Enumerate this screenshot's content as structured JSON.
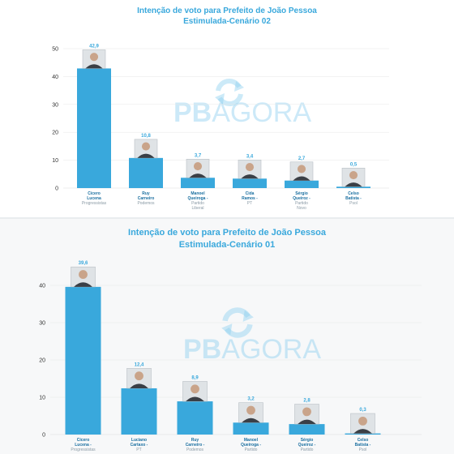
{
  "colors": {
    "bar": "#39a8dc",
    "title": "#39a8dc",
    "value": "#39a8dc",
    "name": "#1a6fa0",
    "party": "#8a9aa5",
    "grid": "#e6e6e6",
    "watermark": "#8fd0f0"
  },
  "watermark": {
    "bold": "PB",
    "light": "AGORA"
  },
  "chart_data": [
    {
      "type": "bar",
      "title": "Intenção de voto para Prefeito de João Pessoa",
      "subtitle": "Estimulada-Cenário 02",
      "ylim": [
        0,
        50
      ],
      "yticks": [
        "0",
        "10",
        "20",
        "30",
        "40",
        "50"
      ],
      "value_labels": [
        "42,9",
        "10,8",
        "3,7",
        "3,4",
        "2,7",
        "0,5"
      ],
      "values": [
        42.9,
        10.8,
        3.7,
        3.4,
        2.7,
        0.5
      ],
      "categories": [
        {
          "name": [
            "Cícero",
            "Lucena"
          ],
          "party": [
            "Progressistas"
          ]
        },
        {
          "name": [
            "Ruy",
            "Carneiro"
          ],
          "party": [
            "Podemos"
          ]
        },
        {
          "name": [
            "Manoel",
            "Queiroga -"
          ],
          "party": [
            "Partido",
            "Liberal"
          ]
        },
        {
          "name": [
            "Cida",
            "Ramos -"
          ],
          "party": [
            "PT"
          ]
        },
        {
          "name": [
            "Sérgio",
            "Queiroz -"
          ],
          "party": [
            "Partido",
            "Novo"
          ]
        },
        {
          "name": [
            "Celso",
            "Batista -"
          ],
          "party": [
            "Psol"
          ]
        }
      ]
    },
    {
      "type": "bar",
      "title": "Intenção de voto para Prefeito de João Pessoa",
      "subtitle": "Estimulada-Cenário 01",
      "ylim": [
        0,
        40
      ],
      "yticks": [
        "0",
        "10",
        "20",
        "30",
        "40"
      ],
      "value_labels": [
        "39,6",
        "12,4",
        "8,9",
        "3,2",
        "2,8",
        "0,3"
      ],
      "values": [
        39.6,
        12.4,
        8.9,
        3.2,
        2.8,
        0.3
      ],
      "categories": [
        {
          "name": [
            "Cícero",
            "Lucena -"
          ],
          "party": [
            "Progressistas"
          ]
        },
        {
          "name": [
            "Luciano",
            "Cartaxo -"
          ],
          "party": [
            "PT"
          ]
        },
        {
          "name": [
            "Ruy",
            "Carneiro -"
          ],
          "party": [
            "Podemos"
          ]
        },
        {
          "name": [
            "Manoel",
            "Queiroga -"
          ],
          "party": [
            "Partido"
          ]
        },
        {
          "name": [
            "Sérgio",
            "Queiroz -"
          ],
          "party": [
            "Partido"
          ]
        },
        {
          "name": [
            "Celso",
            "Batista -"
          ],
          "party": [
            "Psol"
          ]
        }
      ]
    }
  ]
}
